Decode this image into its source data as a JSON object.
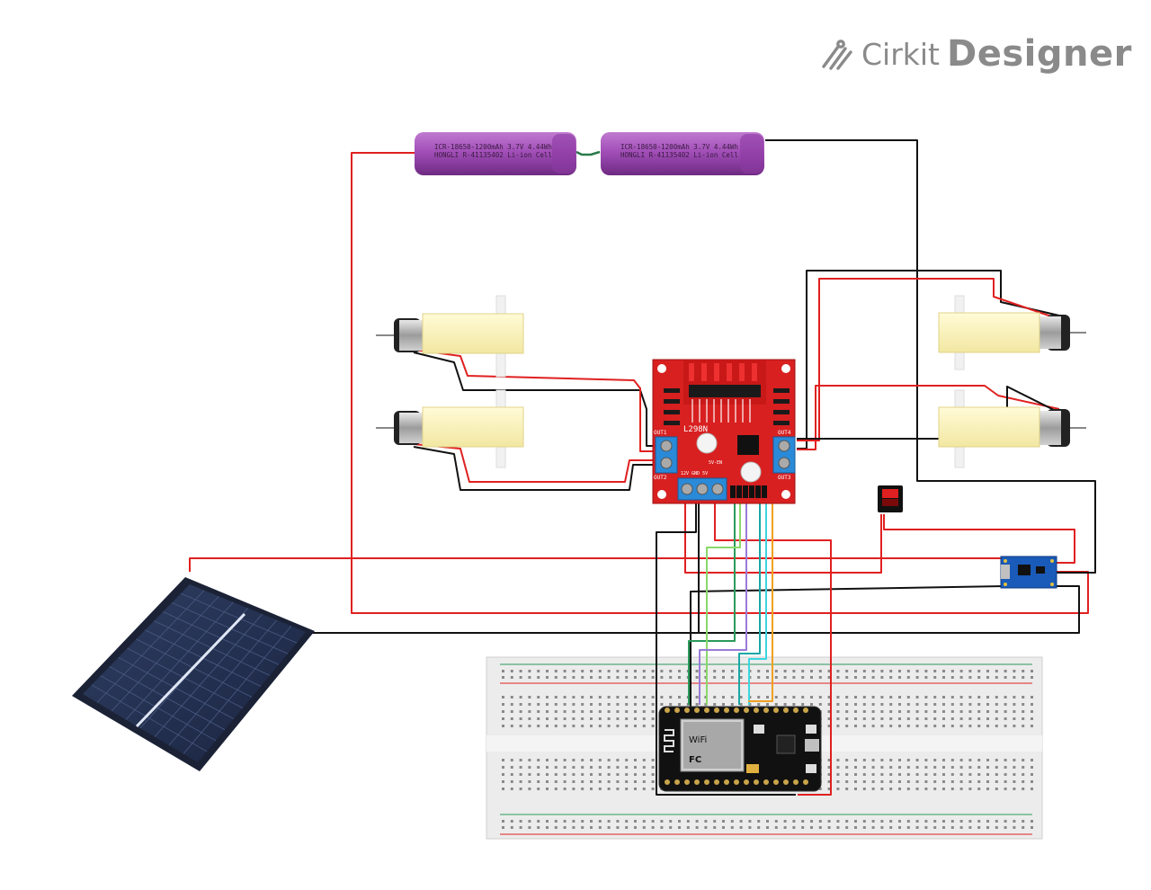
{
  "app": {
    "brand_cirkit": "Cirkit",
    "brand_designer": "Designer",
    "colors": {
      "brand_gray": "#8a8a8a"
    }
  },
  "components": {
    "battery_1": {
      "line1": "ICR-18650-1200mAh 3.7V 4.44Wh",
      "line2": "HONGLI R-41135402 Li-ion Cell"
    },
    "battery_2": {
      "line1": "ICR-18650-1200mAh 3.7V 4.44Wh",
      "line2": "HONGLI R-41135402 Li-ion Cell"
    },
    "motor_driver": {
      "chip_label": "L298N",
      "out1": "OUT1",
      "out2": "OUT2",
      "out3": "OUT3",
      "out4": "OUT4",
      "power_labels": "12V GND 5V",
      "enable_label": "5V-EN"
    },
    "motors": [
      "gear-motor-left-top",
      "gear-motor-left-bottom",
      "gear-motor-right-top",
      "gear-motor-right-bottom"
    ],
    "switch": {
      "icon": "rocker-switch-icon"
    },
    "charger": {
      "icon": "tp4056-charger-icon"
    },
    "solar_panel": {
      "icon": "solar-panel-icon"
    },
    "mcu": {
      "wifi_label": "WiFi",
      "fc_label": "FC"
    },
    "breadboard": {
      "icon": "breadboard-icon"
    }
  },
  "wire_colors": {
    "red": "#e02020",
    "black": "#111111",
    "green": "#2a9a5a",
    "lime": "#8ad86a",
    "purple": "#9a7ad8",
    "teal": "#1aa6a6",
    "cyan": "#3cd6e0",
    "orange": "#f0a020"
  }
}
